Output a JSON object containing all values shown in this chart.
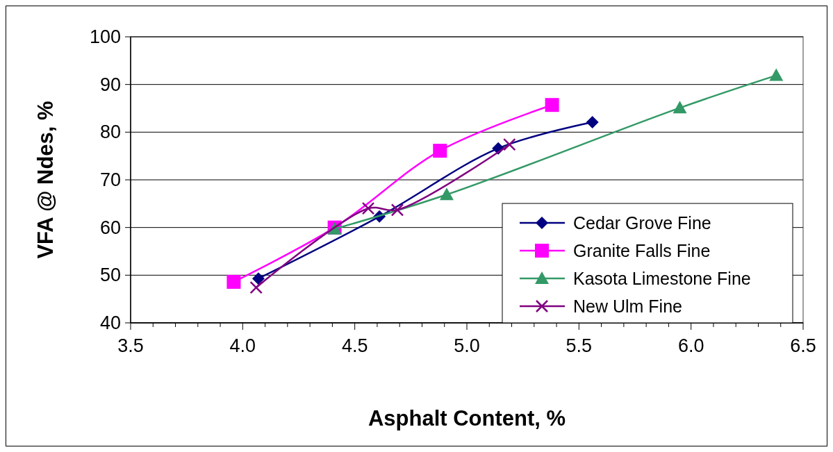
{
  "chart_data": {
    "type": "line",
    "xlabel": "Asphalt Content, %",
    "ylabel": "VFA @ Ndes, %",
    "xlim": [
      3.5,
      6.5
    ],
    "ylim": [
      40,
      100
    ],
    "xticks": [
      3.5,
      {
        "value": 3.6,
        "label": null
      },
      {
        "value": 3.7,
        "label": null
      },
      {
        "value": 3.8,
        "label": null
      },
      {
        "value": 3.9,
        "label": null
      },
      "4.0",
      {
        "value": 4.1,
        "label": null
      },
      {
        "value": 4.2,
        "label": null
      },
      {
        "value": 4.3,
        "label": null
      },
      {
        "value": 4.4,
        "label": null
      },
      4.5,
      {
        "value": 4.6,
        "label": null
      },
      {
        "value": 4.7,
        "label": null
      },
      {
        "value": 4.8,
        "label": null
      },
      {
        "value": 4.9,
        "label": null
      },
      "5.0",
      {
        "value": 5.1,
        "label": null
      },
      {
        "value": 5.2,
        "label": null
      },
      {
        "value": 5.3,
        "label": null
      },
      {
        "value": 5.4,
        "label": null
      },
      5.5,
      {
        "value": 5.6,
        "label": null
      },
      {
        "value": 5.7,
        "label": null
      },
      {
        "value": 5.8,
        "label": null
      },
      {
        "value": 5.9,
        "label": null
      },
      "6.0",
      {
        "value": 6.1,
        "label": null
      },
      {
        "value": 6.2,
        "label": null
      },
      {
        "value": 6.3,
        "label": null
      },
      {
        "value": 6.4,
        "label": null
      },
      6.5
    ],
    "yticks": [
      40,
      50,
      60,
      70,
      80,
      90,
      100
    ],
    "grid": "y",
    "legend": "bottom right",
    "line_style": "solid",
    "series": [
      {
        "name": "Cedar Grove Fine",
        "color": "#000080",
        "marker": "diamond",
        "x": [
          4.07,
          4.61,
          5.14,
          5.56
        ],
        "values": [
          49.3,
          62.3,
          76.6,
          82.1
        ]
      },
      {
        "name": "Granite Falls Fine",
        "color": "#ff00ff",
        "marker": "square",
        "x": [
          3.96,
          4.41,
          4.88,
          5.38
        ],
        "values": [
          48.6,
          60,
          76.1,
          85.7
        ]
      },
      {
        "name": "Kasota Limestone Fine",
        "color": "#339966",
        "marker": "triangle",
        "x": [
          4.41,
          4.91,
          5.95,
          6.38
        ],
        "values": [
          59.7,
          66.9,
          85.1,
          91.9
        ]
      },
      {
        "name": "New Ulm Fine",
        "color": "#800080",
        "marker": "cross",
        "x": [
          4.06,
          4.56,
          4.69,
          5.19
        ],
        "values": [
          47.4,
          64,
          63.7,
          77.4
        ]
      }
    ]
  }
}
